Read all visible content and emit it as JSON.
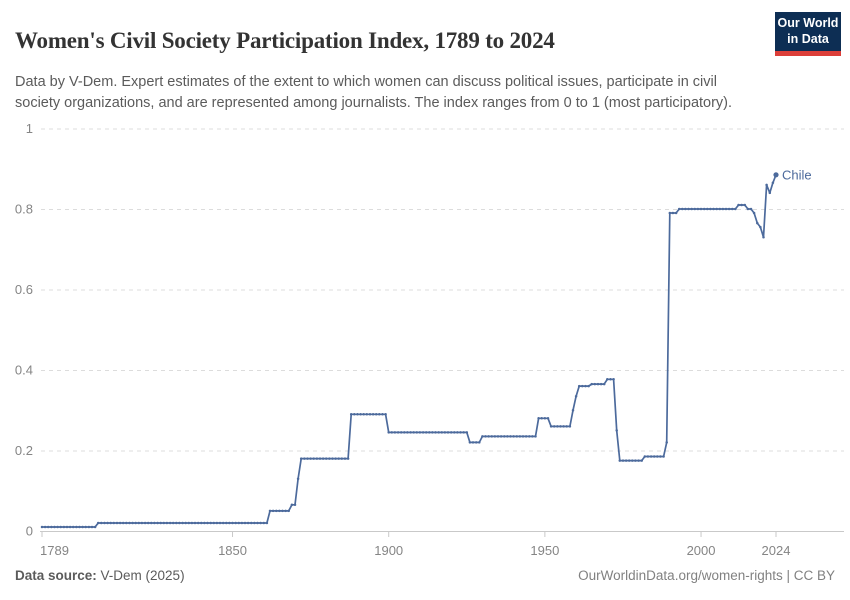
{
  "header": {
    "title": "Women's Civil Society Participation Index, 1789 to 2024",
    "logo": {
      "line1": "Our World",
      "line2": "in Data"
    }
  },
  "subtitle": "Data by V-Dem. Expert estimates of the extent to which women can discuss political issues, participate in civil society organizations, and are represented among journalists. The index ranges from 0 to 1 (most participatory).",
  "chart_data": {
    "type": "line",
    "title": "Women's Civil Society Participation Index, 1789 to 2024",
    "entity": "Chile",
    "entity_label": "Chile",
    "xlabel": "",
    "ylabel": "",
    "xlim": [
      1789,
      2024
    ],
    "ylim": [
      0,
      1
    ],
    "x_ticks": [
      1789,
      1850,
      1900,
      1950,
      2000,
      2024
    ],
    "y_ticks": [
      0,
      0.2,
      0.4,
      0.6,
      0.8,
      1
    ],
    "grid": true,
    "gridline_style": "dashed",
    "legend_position": "end-of-line",
    "line_color": "#4C6A9C",
    "gridline_color": "#dcdcdc",
    "axis_color": "#c9c9c9",
    "tick_label_color": "#858585",
    "series": [
      {
        "name": "Chile",
        "note": "Yearly step data: each [year, value] breakpoint holds until the next breakpoint; final year 2024.",
        "breakpoints": [
          [
            1789,
            0.01
          ],
          [
            1807,
            0.02
          ],
          [
            1862,
            0.05
          ],
          [
            1869,
            0.065
          ],
          [
            1871,
            0.13
          ],
          [
            1872,
            0.18
          ],
          [
            1888,
            0.29
          ],
          [
            1900,
            0.245
          ],
          [
            1926,
            0.22
          ],
          [
            1930,
            0.235
          ],
          [
            1948,
            0.28
          ],
          [
            1952,
            0.26
          ],
          [
            1959,
            0.3
          ],
          [
            1960,
            0.335
          ],
          [
            1961,
            0.36
          ],
          [
            1965,
            0.365
          ],
          [
            1970,
            0.377
          ],
          [
            1973,
            0.25
          ],
          [
            1974,
            0.175
          ],
          [
            1982,
            0.185
          ],
          [
            1989,
            0.22
          ],
          [
            1990,
            0.79
          ],
          [
            1993,
            0.8
          ],
          [
            2012,
            0.81
          ],
          [
            2015,
            0.8
          ],
          [
            2017,
            0.79
          ],
          [
            2018,
            0.765
          ],
          [
            2019,
            0.755
          ],
          [
            2020,
            0.73
          ],
          [
            2021,
            0.86
          ],
          [
            2022,
            0.84
          ],
          [
            2023,
            0.865
          ],
          [
            2024,
            0.885
          ]
        ]
      }
    ]
  },
  "footer": {
    "source_label": "Data source:",
    "source_value": " V-Dem (2025)",
    "right": "OurWorldinData.org/women-rights | CC BY"
  }
}
